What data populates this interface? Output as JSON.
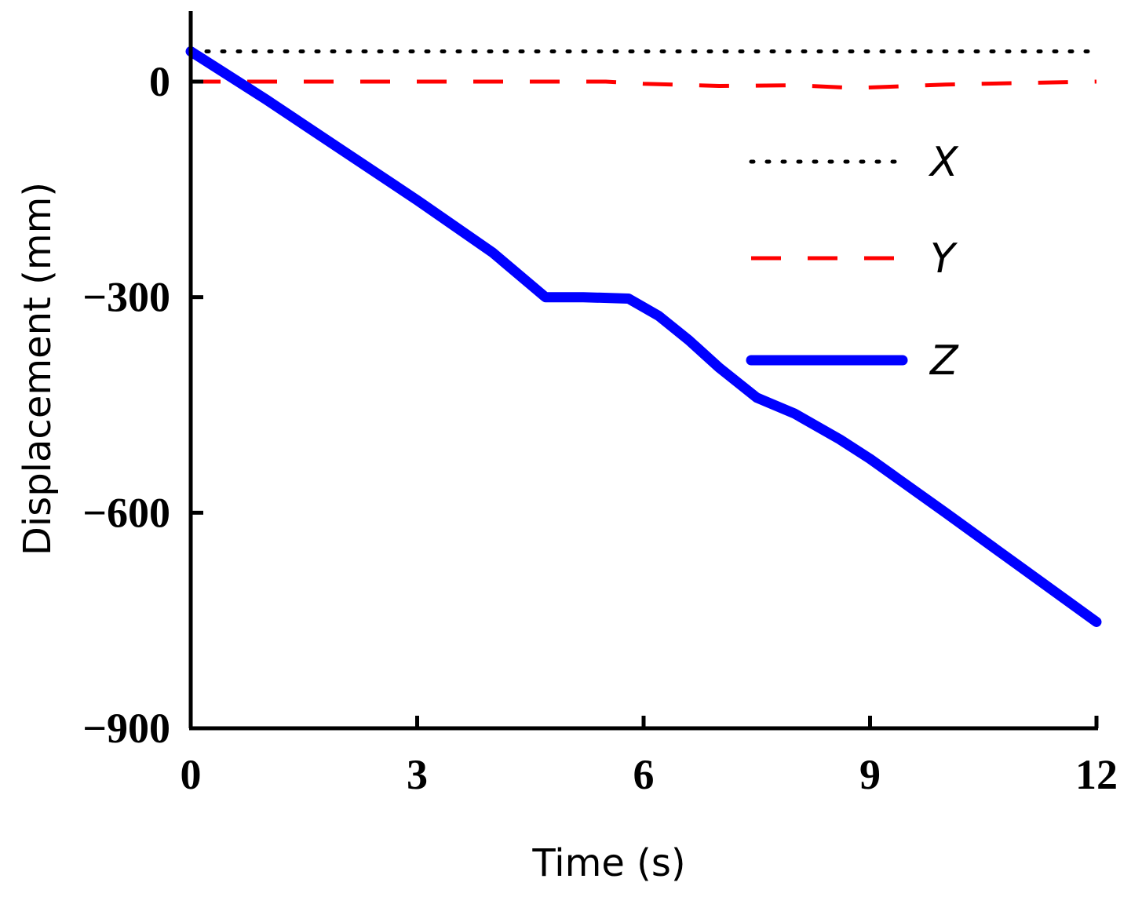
{
  "chart_data": {
    "type": "line",
    "title": "",
    "xlabel": "Time (s)",
    "ylabel": "Displacement (mm)",
    "xlim": [
      0,
      12
    ],
    "ylim": [
      -900,
      100
    ],
    "x_ticks": [
      "0",
      "3",
      "6",
      "9",
      "12"
    ],
    "y_ticks": [
      "0",
      "−300",
      "−600",
      "−900"
    ],
    "grid": false,
    "legend_position": "right",
    "series": [
      {
        "name": "X",
        "color": "#000000",
        "style": "dotted",
        "x": [
          0,
          12
        ],
        "y": [
          42,
          42
        ]
      },
      {
        "name": "Y",
        "color": "#ff0000",
        "style": "dashed",
        "x": [
          0,
          3,
          5.5,
          6,
          7,
          8,
          8.8,
          9.3,
          10,
          11,
          12
        ],
        "y": [
          0,
          0,
          0,
          -3,
          -6,
          -5,
          -9,
          -7,
          -4,
          -2,
          0
        ]
      },
      {
        "name": "Z",
        "color": "#0000ff",
        "style": "solid",
        "x": [
          0,
          1,
          2,
          3,
          4,
          4.7,
          5.2,
          5.8,
          6.2,
          6.6,
          7,
          7.5,
          8,
          8.6,
          9,
          10,
          11,
          12
        ],
        "y": [
          42,
          -25,
          -95,
          -165,
          -238,
          -300,
          -300,
          -302,
          -326,
          -360,
          -398,
          -440,
          -462,
          -498,
          -525,
          -600,
          -676,
          -752
        ]
      }
    ]
  }
}
